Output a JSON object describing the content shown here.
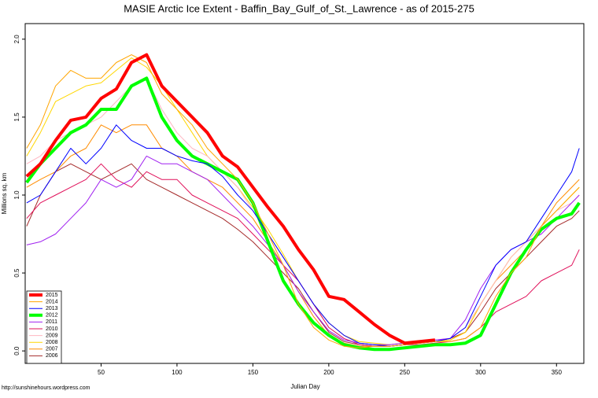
{
  "chart_data": {
    "type": "line",
    "title": "MASIE Arctic Ice Extent - Baffin_Bay_Gulf_of_St._Lawrence - as of 2015-275",
    "x_label": "Julian Day",
    "y_label": "Millions sq. km",
    "source": "http://sunshinehours.wordpress.com",
    "legend": "bottom-left",
    "xlim": [
      0,
      368
    ],
    "ylim": [
      -0.08,
      2.1
    ],
    "xticks": [
      50,
      100,
      150,
      200,
      250,
      300,
      350
    ],
    "yticks": [
      {
        "value": 0,
        "label": "0.0"
      },
      0.5,
      {
        "value": 1,
        "label": "1.0"
      },
      1.5,
      {
        "value": 2,
        "label": "2.0"
      }
    ],
    "x": [
      1,
      10,
      20,
      30,
      40,
      50,
      60,
      70,
      80,
      90,
      100,
      110,
      120,
      130,
      140,
      150,
      160,
      170,
      180,
      190,
      200,
      210,
      220,
      230,
      240,
      250,
      260,
      270,
      280,
      290,
      300,
      310,
      320,
      330,
      340,
      350,
      360,
      365
    ],
    "series": [
      {
        "name": "2015",
        "color": "#ff0000",
        "width": 4,
        "values": [
          1.12,
          1.2,
          1.35,
          1.48,
          1.5,
          1.62,
          1.68,
          1.85,
          1.9,
          1.7,
          1.6,
          1.5,
          1.4,
          1.25,
          1.18,
          1.05,
          0.92,
          0.8,
          0.65,
          0.52,
          0.35,
          0.33,
          0.25,
          0.17,
          0.1,
          0.05,
          0.06,
          0.07,
          null,
          null,
          null,
          null,
          null,
          null,
          null,
          null,
          null,
          null
        ]
      },
      {
        "name": "2014",
        "color": "#ffa500",
        "width": 1,
        "values": [
          1.3,
          1.45,
          1.7,
          1.8,
          1.75,
          1.75,
          1.85,
          1.9,
          1.85,
          1.65,
          1.55,
          1.45,
          1.3,
          1.2,
          1.1,
          0.95,
          0.75,
          0.55,
          0.3,
          0.15,
          0.07,
          0.03,
          0.02,
          0.03,
          0.03,
          0.04,
          0.05,
          0.06,
          0.06,
          0.08,
          0.15,
          0.35,
          0.5,
          0.6,
          0.8,
          0.9,
          1.0,
          1.05
        ]
      },
      {
        "name": "2013",
        "color": "#0000ff",
        "width": 1,
        "values": [
          0.95,
          1.0,
          1.15,
          1.3,
          1.2,
          1.3,
          1.45,
          1.35,
          1.3,
          1.3,
          1.25,
          1.22,
          1.2,
          1.12,
          1.0,
          0.9,
          0.75,
          0.6,
          0.45,
          0.3,
          0.18,
          0.1,
          0.05,
          0.04,
          0.03,
          0.04,
          0.05,
          0.06,
          0.08,
          0.15,
          0.35,
          0.55,
          0.65,
          0.7,
          0.85,
          1.0,
          1.15,
          1.3
        ]
      },
      {
        "name": "2012",
        "color": "#00ff00",
        "width": 4,
        "values": [
          1.08,
          1.2,
          1.3,
          1.4,
          1.45,
          1.55,
          1.55,
          1.7,
          1.75,
          1.5,
          1.35,
          1.25,
          1.2,
          1.15,
          1.1,
          0.95,
          0.7,
          0.45,
          0.3,
          0.18,
          0.1,
          0.04,
          0.02,
          0.01,
          0.01,
          0.02,
          0.03,
          0.04,
          0.04,
          0.05,
          0.1,
          0.3,
          0.5,
          0.65,
          0.78,
          0.85,
          0.88,
          0.95
        ]
      },
      {
        "name": "2011",
        "color": "#a020f0",
        "width": 1,
        "values": [
          0.68,
          0.7,
          0.75,
          0.85,
          0.95,
          1.1,
          1.05,
          1.1,
          1.25,
          1.2,
          1.2,
          1.15,
          1.1,
          1.0,
          0.9,
          0.8,
          0.68,
          0.55,
          0.38,
          0.25,
          0.13,
          0.07,
          0.05,
          0.04,
          0.04,
          0.05,
          0.06,
          0.07,
          0.08,
          0.2,
          0.4,
          0.55,
          0.65,
          0.7,
          0.75,
          0.85,
          0.95,
          1.0
        ]
      },
      {
        "name": "2010",
        "color": "#e0105a",
        "width": 1,
        "values": [
          0.85,
          0.95,
          1.0,
          1.05,
          1.1,
          1.2,
          1.1,
          1.05,
          1.15,
          1.1,
          1.1,
          1.0,
          0.95,
          0.9,
          0.85,
          0.75,
          0.65,
          0.55,
          0.45,
          0.3,
          0.15,
          0.08,
          0.04,
          0.03,
          0.03,
          0.04,
          0.04,
          0.05,
          0.06,
          0.08,
          0.15,
          0.25,
          0.3,
          0.35,
          0.45,
          0.5,
          0.55,
          0.65
        ]
      },
      {
        "name": "2009",
        "color": "#ffb6c1",
        "width": 1,
        "values": [
          1.2,
          1.25,
          1.35,
          1.4,
          1.45,
          1.5,
          1.6,
          1.7,
          1.75,
          1.55,
          1.4,
          1.3,
          1.25,
          1.15,
          1.05,
          0.9,
          0.75,
          0.6,
          0.45,
          0.3,
          0.15,
          0.08,
          0.05,
          0.04,
          0.04,
          0.05,
          0.06,
          0.07,
          0.08,
          0.15,
          0.3,
          0.45,
          0.6,
          0.7,
          0.8,
          0.9,
          0.95,
          1.0
        ]
      },
      {
        "name": "2008",
        "color": "#ffd700",
        "width": 1,
        "values": [
          1.25,
          1.4,
          1.6,
          1.65,
          1.7,
          1.72,
          1.8,
          1.88,
          1.82,
          1.7,
          1.55,
          1.4,
          1.25,
          1.15,
          1.05,
          0.92,
          0.78,
          0.62,
          0.45,
          0.3,
          0.18,
          0.1,
          0.06,
          0.05,
          0.04,
          0.05,
          0.05,
          0.06,
          0.07,
          0.12,
          0.3,
          0.45,
          0.6,
          0.7,
          0.8,
          0.9,
          1.0,
          1.05
        ]
      },
      {
        "name": "2007",
        "color": "#ff8c00",
        "width": 1,
        "values": [
          1.05,
          1.1,
          1.15,
          1.25,
          1.3,
          1.45,
          1.4,
          1.45,
          1.45,
          1.3,
          1.25,
          1.15,
          1.1,
          1.05,
          0.95,
          0.85,
          0.7,
          0.55,
          0.38,
          0.22,
          0.1,
          0.05,
          0.03,
          0.03,
          0.04,
          0.05,
          0.05,
          0.06,
          0.07,
          0.12,
          0.3,
          0.45,
          0.55,
          0.65,
          0.8,
          0.95,
          1.05,
          1.1
        ]
      },
      {
        "name": "2006",
        "color": "#a52a2a",
        "width": 1,
        "values": [
          0.8,
          1.0,
          1.15,
          1.2,
          1.15,
          1.1,
          1.15,
          1.2,
          1.1,
          1.05,
          1.0,
          0.95,
          0.9,
          0.85,
          0.78,
          0.7,
          0.6,
          0.5,
          0.4,
          0.25,
          0.12,
          0.06,
          0.04,
          0.03,
          0.03,
          0.04,
          0.05,
          0.06,
          0.08,
          0.12,
          0.25,
          0.4,
          0.5,
          0.6,
          0.7,
          0.8,
          0.85,
          0.9
        ]
      }
    ]
  }
}
